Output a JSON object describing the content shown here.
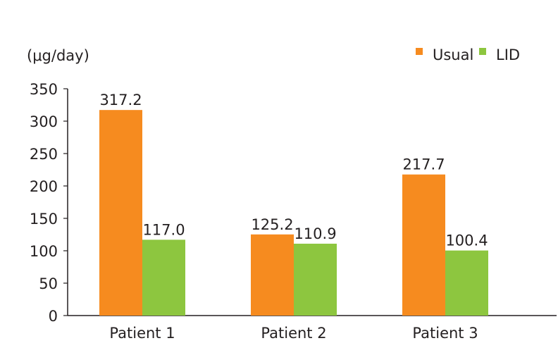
{
  "chart_data": {
    "type": "bar",
    "title": "",
    "ylabel": "(μg/day)",
    "xlabel": "",
    "ylim": [
      0,
      350
    ],
    "yticks": [
      0,
      50,
      100,
      150,
      200,
      250,
      300,
      350
    ],
    "categories": [
      "Patient 1",
      "Patient 2",
      "Patient 3"
    ],
    "series": [
      {
        "name": "Usual",
        "color": "#F68B1F",
        "values": [
          317.2,
          125.2,
          217.7
        ],
        "labels": [
          "317.2",
          "125.2",
          "217.7"
        ]
      },
      {
        "name": "LID",
        "color": "#8DC63F",
        "values": [
          117.0,
          110.9,
          100.4
        ],
        "labels": [
          "117.0",
          "110.9",
          "100.4"
        ]
      }
    ],
    "legend": "top-right",
    "grid": false
  }
}
